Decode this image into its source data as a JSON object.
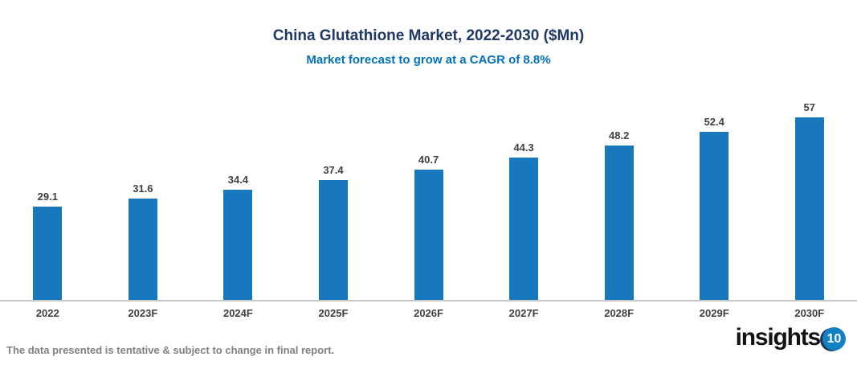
{
  "chart_data": {
    "type": "bar",
    "categories": [
      "2022",
      "2023F",
      "2024F",
      "2025F",
      "2026F",
      "2027F",
      "2028F",
      "2029F",
      "2030F"
    ],
    "values": [
      29.1,
      31.6,
      34.4,
      37.4,
      40.7,
      44.3,
      48.2,
      52.4,
      57
    ],
    "data_labels": [
      "29.1",
      "31.6",
      "34.4",
      "37.4",
      "40.7",
      "44.3",
      "48.2",
      "52.4",
      "57"
    ],
    "title": "China Glutathione Market, 2022-2030 ($Mn)",
    "subtitle": "Market forecast to grow at a CAGR of 8.8%",
    "xlabel": "",
    "ylabel": "",
    "ylim": [
      0,
      60
    ],
    "grid": false,
    "legend": false,
    "bar_color": "#1878be"
  },
  "footer": {
    "disclaimer": "The data presented is tentative & subject to change in final report."
  },
  "logo": {
    "text": "insights",
    "badge": "10"
  },
  "colors": {
    "bar": "#1878be",
    "title": "#1f3864",
    "subtitle": "#0070c0",
    "label": "#404040",
    "axis": "#c8c8c8",
    "footer_text": "#808080",
    "logo_badge": "#1480c4"
  }
}
